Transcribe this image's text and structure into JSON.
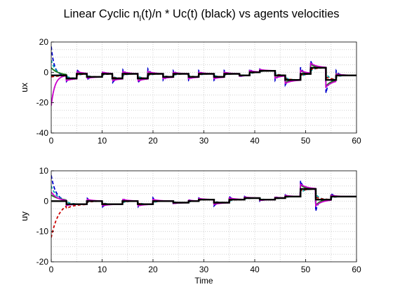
{
  "figure": {
    "title_main": "Linear Cyclic   n",
    "title_sub": "l",
    "title_rest": "(t)/n * Uc(t) (black) vs agents velocities"
  },
  "chart_data": [
    {
      "type": "line",
      "ylabel": "ux",
      "xlabel": "",
      "xlim": [
        0,
        60
      ],
      "ylim": [
        -40,
        20
      ],
      "x_ticks": [
        "0",
        "10",
        "20",
        "30",
        "40",
        "50",
        "60"
      ],
      "y_ticks": [
        "20",
        "0",
        "-20",
        "-40"
      ],
      "grid": true,
      "reference_step": {
        "name": "Uc(t)",
        "color": "#000000",
        "x": [
          0,
          3,
          3,
          5,
          5,
          7,
          7,
          10,
          10,
          12,
          12,
          14,
          14,
          17,
          17,
          19,
          19,
          22,
          22,
          24,
          24,
          27,
          27,
          29,
          29,
          32,
          32,
          34,
          34,
          37,
          37,
          39,
          39,
          41,
          41,
          44,
          44,
          46,
          46,
          49,
          49,
          51,
          51,
          54,
          54,
          56,
          56,
          60
        ],
        "y": [
          -2,
          -2,
          -4,
          -4,
          -1,
          -1,
          -3,
          -3,
          -1,
          -1,
          -4,
          -4,
          -1,
          -1,
          -4,
          -4,
          -1,
          -1,
          -3,
          -3,
          -1,
          -1,
          -3,
          -3,
          -1,
          -1,
          -3,
          -3,
          -1,
          -1,
          -2,
          -2,
          0,
          0,
          1,
          1,
          -2,
          -2,
          -5,
          -5,
          -1,
          -1,
          3,
          3,
          -5,
          -5,
          -2,
          -2
        ]
      },
      "agents": [
        {
          "color": "#0000cc",
          "dash": "5,3",
          "initial": 17,
          "tau": 0.6
        },
        {
          "color": "#00aaaa",
          "dash": "4,3",
          "initial": 8,
          "tau": 0.9
        },
        {
          "color": "#1a7a1a",
          "dash": "",
          "initial": 3,
          "tau": 1.4
        },
        {
          "color": "#cc0000",
          "dash": "4,3",
          "initial": -3,
          "tau": 1.8
        },
        {
          "color": "#cc00cc",
          "dash": "",
          "initial": -22,
          "tau": 0.7
        }
      ]
    },
    {
      "type": "line",
      "ylabel": "uy",
      "xlabel": "Time",
      "xlim": [
        0,
        60
      ],
      "ylim": [
        -20,
        10
      ],
      "x_ticks": [
        "0",
        "10",
        "20",
        "30",
        "40",
        "50",
        "60"
      ],
      "y_ticks": [
        "10",
        "0",
        "-10",
        "-20"
      ],
      "grid": true,
      "reference_step": {
        "name": "Uc(t)",
        "color": "#000000",
        "x": [
          0,
          3,
          3,
          7,
          7,
          10,
          10,
          14,
          14,
          17,
          17,
          20,
          20,
          24,
          24,
          27,
          27,
          29,
          29,
          32,
          32,
          35,
          35,
          38,
          38,
          41,
          41,
          44,
          44,
          46,
          46,
          49,
          49,
          52,
          52,
          55,
          55,
          60
        ],
        "y": [
          0,
          0,
          -1,
          -1,
          0,
          0,
          -1,
          -1,
          0,
          0,
          -1,
          -1,
          0,
          0,
          -0.5,
          -0.5,
          0,
          0,
          0.5,
          0.5,
          -0.5,
          -0.5,
          0.5,
          0.5,
          1,
          1,
          0.5,
          0.5,
          1,
          1,
          1.5,
          1.5,
          4,
          4,
          0.5,
          0.5,
          1.5,
          1.5
        ]
      },
      "agents": [
        {
          "color": "#0000cc",
          "dash": "5,3",
          "initial": 8.5,
          "tau": 0.9
        },
        {
          "color": "#00aaaa",
          "dash": "4,3",
          "initial": 5,
          "tau": 1.1
        },
        {
          "color": "#1a7a1a",
          "dash": "",
          "initial": 2,
          "tau": 1.8
        },
        {
          "color": "#cc0000",
          "dash": "4,3",
          "initial": -12,
          "tau": 1.5
        },
        {
          "color": "#cc00cc",
          "dash": "",
          "initial": 3,
          "tau": 1.2
        }
      ]
    }
  ]
}
